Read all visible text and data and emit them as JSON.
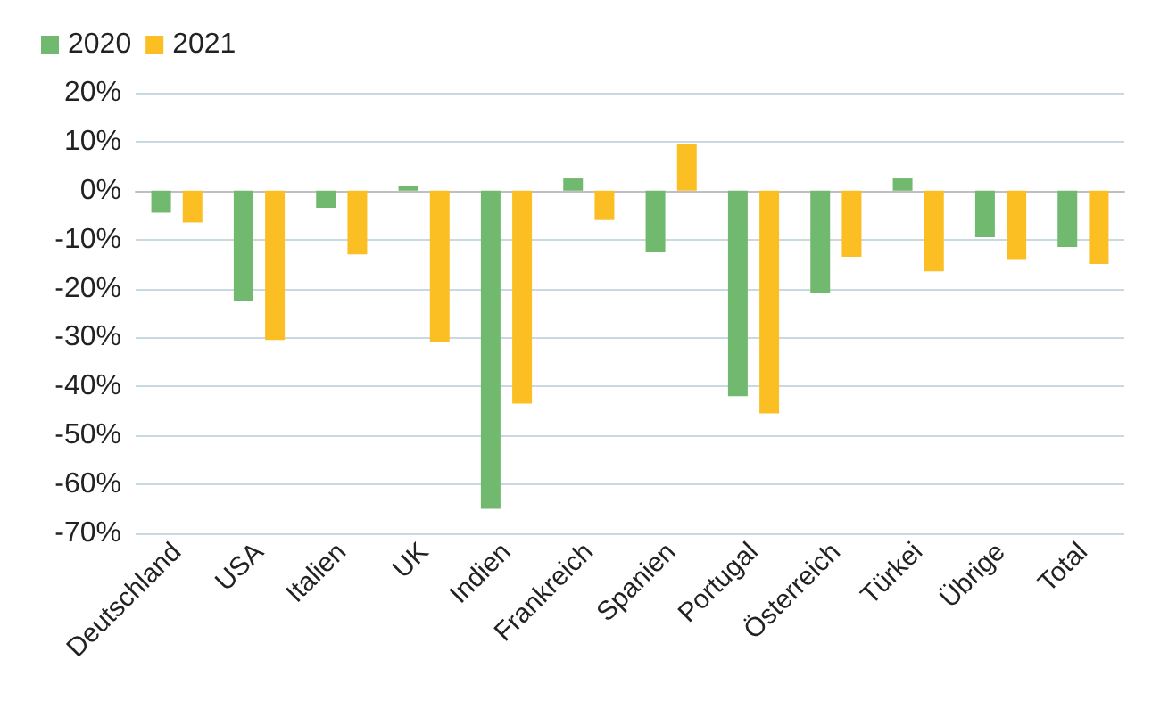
{
  "chart_data": {
    "type": "bar",
    "categories": [
      "Deutschland",
      "USA",
      "Italien",
      "UK",
      "Indien",
      "Frankreich",
      "Spanien",
      "Portugal",
      "Österreich",
      "Türkei",
      "Übrige",
      "Total"
    ],
    "series": [
      {
        "name": "2020",
        "color": "#71b96f",
        "values": [
          -4.5,
          -22.5,
          -3.5,
          1,
          -65,
          2.5,
          -12.5,
          -42,
          -21,
          2.5,
          -9.5,
          -11.5
        ]
      },
      {
        "name": "2021",
        "color": "#fbbf24",
        "values": [
          -6.5,
          -30.5,
          -13,
          -31,
          -43.5,
          -6,
          9.5,
          -45.5,
          -13.5,
          -16.5,
          -14,
          -15
        ]
      }
    ],
    "ylim": [
      -70,
      20
    ],
    "yticks": [
      {
        "value": -70,
        "label": "-70%"
      },
      {
        "value": -60,
        "label": "-60%"
      },
      {
        "value": -50,
        "label": "-50%"
      },
      {
        "value": -40,
        "label": "-40%"
      },
      {
        "value": -30,
        "label": "-30%"
      },
      {
        "value": -20,
        "label": "-20%"
      },
      {
        "value": -10,
        "label": "-10%"
      },
      {
        "value": 0,
        "label": "0%"
      },
      {
        "value": 10,
        "label": "10%"
      },
      {
        "value": 20,
        "label": "20%"
      }
    ],
    "grid": "y",
    "legend": "top left"
  }
}
